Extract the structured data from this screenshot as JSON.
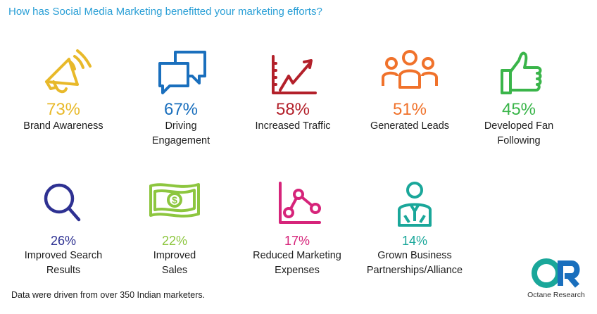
{
  "title": "How has Social Media Marketing benefitted your marketing efforts?",
  "items": [
    {
      "percent": "73%",
      "label": "Brand Awareness",
      "label2": "",
      "icon": "megaphone-icon",
      "color": "#e8b92a"
    },
    {
      "percent": "67%",
      "label": "Driving",
      "label2": "Engagement",
      "icon": "chat-bubbles-icon",
      "color": "#1a6fbd"
    },
    {
      "percent": "58%",
      "label": "Increased Traffic",
      "label2": "",
      "icon": "growth-chart-icon",
      "color": "#b3202a"
    },
    {
      "percent": "51%",
      "label": "Generated Leads",
      "label2": "",
      "icon": "people-group-icon",
      "color": "#f0722b"
    },
    {
      "percent": "45%",
      "label": "Developed Fan",
      "label2": "Following",
      "icon": "thumbs-up-icon",
      "color": "#3ab54a"
    },
    {
      "percent": "26%",
      "label": "Improved Search",
      "label2": "Results",
      "icon": "magnifier-icon",
      "color": "#2e3192"
    },
    {
      "percent": "22%",
      "label": "Improved",
      "label2": "Sales",
      "icon": "dollar-bill-icon",
      "color": "#8dc63f"
    },
    {
      "percent": "17%",
      "label": "Reduced Marketing",
      "label2": "Expenses",
      "icon": "connected-graph-icon",
      "color": "#d6247a"
    },
    {
      "percent": "14%",
      "label": "Grown Business",
      "label2": "Partnerships/Alliance",
      "icon": "businessman-icon",
      "color": "#1aa79a"
    }
  ],
  "footnote": "Data were driven from over 350 Indian marketers.",
  "logo": {
    "mark": "OR",
    "text": "Octane  Research",
    "color_o": "#1aa79a",
    "color_r": "#1a6fbd"
  }
}
